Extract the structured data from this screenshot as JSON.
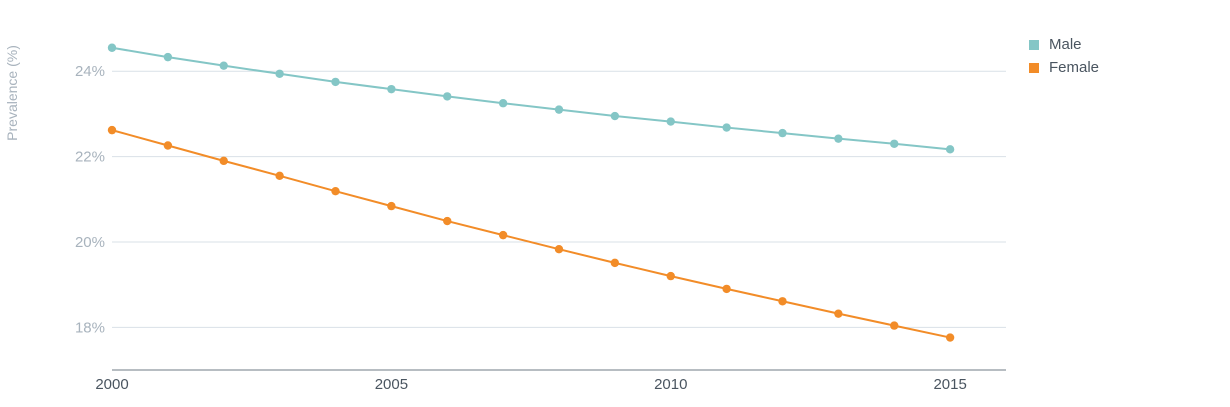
{
  "chart_data": {
    "type": "line",
    "title": "",
    "xlabel": "",
    "ylabel": "Prevalence (%)",
    "x": [
      2000,
      2001,
      2002,
      2003,
      2004,
      2005,
      2006,
      2007,
      2008,
      2009,
      2010,
      2011,
      2012,
      2013,
      2014,
      2015
    ],
    "xticks": [
      2000,
      2005,
      2010,
      2015
    ],
    "yticks": [
      18,
      20,
      22,
      24
    ],
    "ytick_labels": [
      "18%",
      "20%",
      "22%",
      "24%"
    ],
    "ylim": [
      17,
      25.2
    ],
    "xlim": [
      2000,
      2016
    ],
    "grid": true,
    "legend_position": "top-right",
    "series": [
      {
        "name": "Male",
        "color": "#84c6c6",
        "values": [
          24.55,
          24.33,
          24.13,
          23.94,
          23.75,
          23.58,
          23.41,
          23.25,
          23.1,
          22.95,
          22.82,
          22.68,
          22.55,
          22.42,
          22.3,
          22.17
        ]
      },
      {
        "name": "Female",
        "color": "#f28c28",
        "values": [
          22.62,
          22.26,
          21.9,
          21.55,
          21.19,
          20.84,
          20.49,
          20.16,
          19.83,
          19.51,
          19.2,
          18.9,
          18.61,
          18.32,
          18.04,
          17.76
        ]
      }
    ]
  }
}
